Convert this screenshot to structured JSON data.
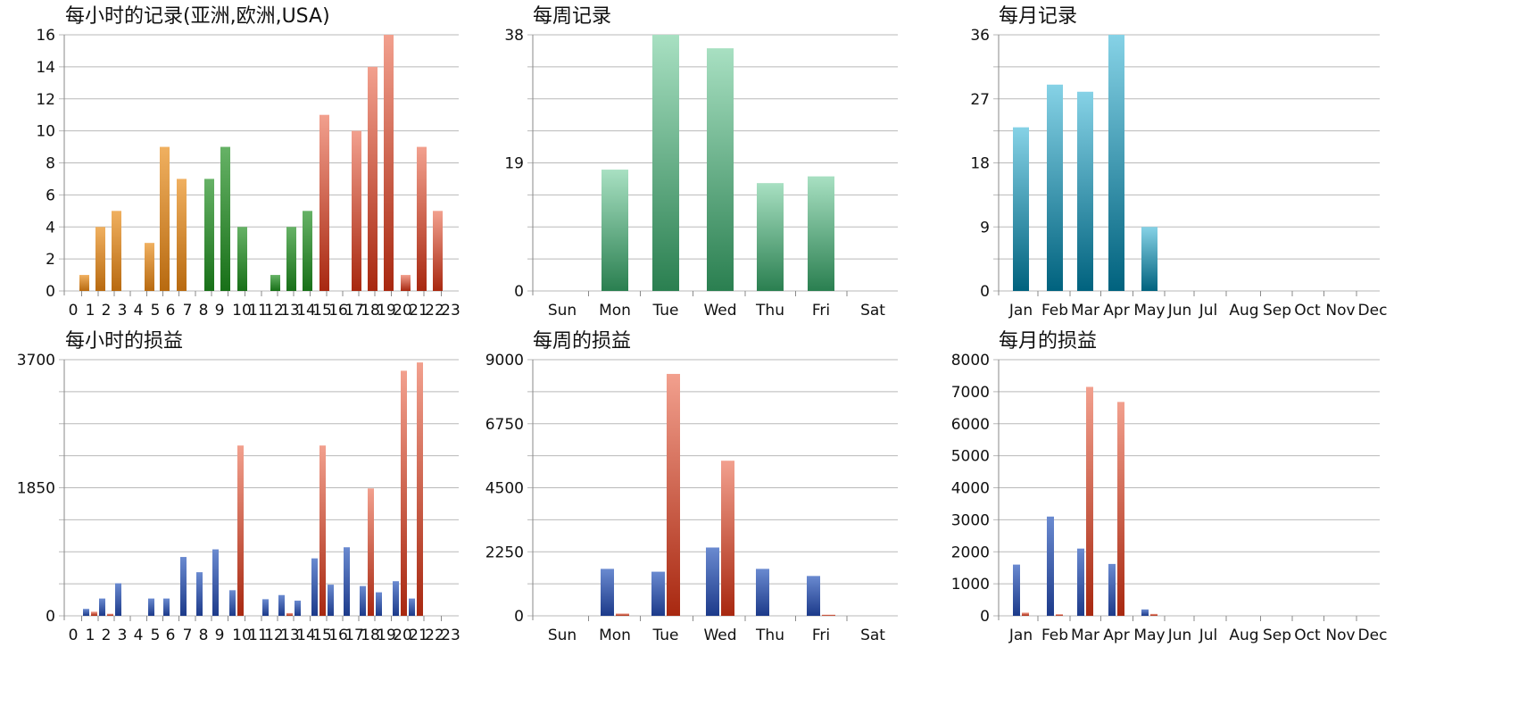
{
  "colors": {
    "grid": "#b9b9b9",
    "orange_top": "#f0b060",
    "orange_bottom": "#b86a10",
    "green_top": "#66b266",
    "green_bottom": "#187018",
    "red_top": "#f2a08e",
    "red_bottom": "#a82810",
    "teal_top": "#a8e0c2",
    "teal_bottom": "#2a7f50",
    "cyan_top": "#86d2e6",
    "cyan_bottom": "#00627e",
    "blue_top": "#6a8ad0",
    "blue_bottom": "#1c3a8a"
  },
  "chart_data": [
    {
      "id": "hourly-records",
      "type": "bar",
      "title": "每小时的记录(亚洲,欧洲,USA)",
      "categories": [
        "0",
        "1",
        "2",
        "3",
        "4",
        "5",
        "6",
        "7",
        "8",
        "9",
        "10",
        "11",
        "12",
        "13",
        "14",
        "15",
        "16",
        "17",
        "18",
        "19",
        "20",
        "21",
        "22",
        "23"
      ],
      "ylim": [
        0,
        16
      ],
      "yticks": [
        "0",
        "2",
        "4",
        "6",
        "8",
        "10",
        "12",
        "14",
        "16"
      ],
      "grid": true,
      "series": [
        {
          "color": "orange",
          "values": [
            0,
            1,
            4,
            5,
            0,
            3,
            9,
            7,
            0,
            0,
            0,
            0,
            0,
            0,
            0,
            0,
            0,
            0,
            0,
            0,
            0,
            0,
            0,
            0
          ]
        },
        {
          "color": "green",
          "values": [
            0,
            0,
            0,
            0,
            0,
            0,
            0,
            0,
            7,
            9,
            4,
            0,
            1,
            4,
            5,
            0,
            0,
            0,
            0,
            0,
            0,
            0,
            0,
            0
          ]
        },
        {
          "color": "red",
          "values": [
            0,
            0,
            0,
            0,
            0,
            0,
            0,
            0,
            0,
            0,
            0,
            0,
            0,
            0,
            0,
            11,
            0,
            10,
            14,
            16,
            1,
            9,
            5,
            0
          ]
        }
      ]
    },
    {
      "id": "weekly-records",
      "type": "bar",
      "title": "每周记录",
      "categories": [
        "Sun",
        "Mon",
        "Tue",
        "Wed",
        "Thu",
        "Fri",
        "Sat"
      ],
      "ylim": [
        0,
        38
      ],
      "yticks": [
        "0",
        "19",
        "38"
      ],
      "grid": true,
      "series": [
        {
          "color": "teal",
          "values": [
            0,
            18,
            38,
            36,
            16,
            17,
            0
          ]
        }
      ]
    },
    {
      "id": "monthly-records",
      "type": "bar",
      "title": "每月记录",
      "categories": [
        "Jan",
        "Feb",
        "Mar",
        "Apr",
        "May",
        "Jun",
        "Jul",
        "Aug",
        "Sep",
        "Oct",
        "Nov",
        "Dec"
      ],
      "ylim": [
        0,
        36
      ],
      "yticks": [
        "0",
        "9",
        "18",
        "27",
        "36"
      ],
      "grid": true,
      "series": [
        {
          "color": "cyan",
          "values": [
            23,
            29,
            28,
            36,
            9,
            0,
            0,
            0,
            0,
            0,
            0,
            0
          ]
        }
      ]
    },
    {
      "id": "hourly-pnl",
      "type": "bar",
      "title": "每小时的损益",
      "categories": [
        "0",
        "1",
        "2",
        "3",
        "4",
        "5",
        "6",
        "7",
        "8",
        "9",
        "10",
        "11",
        "12",
        "13",
        "14",
        "15",
        "16",
        "17",
        "18",
        "19",
        "20",
        "21",
        "22",
        "23"
      ],
      "ylim": [
        0,
        3700
      ],
      "yticks": [
        "0",
        "1850",
        "3700"
      ],
      "grid": true,
      "series": [
        {
          "color": "blue",
          "values": [
            0,
            100,
            250,
            470,
            0,
            250,
            250,
            850,
            630,
            960,
            370,
            0,
            240,
            300,
            220,
            830,
            450,
            990,
            430,
            340,
            500,
            250,
            0,
            0
          ]
        },
        {
          "color": "red",
          "values": [
            0,
            60,
            30,
            0,
            0,
            0,
            0,
            0,
            0,
            0,
            2460,
            0,
            0,
            40,
            0,
            2460,
            0,
            0,
            1840,
            0,
            3540,
            3660,
            0,
            0
          ]
        }
      ]
    },
    {
      "id": "weekly-pnl",
      "type": "bar",
      "title": "每周的损益",
      "categories": [
        "Sun",
        "Mon",
        "Tue",
        "Wed",
        "Thu",
        "Fri",
        "Sat"
      ],
      "ylim": [
        0,
        9000
      ],
      "yticks": [
        "0",
        "2250",
        "4500",
        "6750",
        "9000"
      ],
      "grid": true,
      "series": [
        {
          "color": "blue",
          "values": [
            0,
            1650,
            1550,
            2400,
            1650,
            1400,
            0
          ]
        },
        {
          "color": "red",
          "values": [
            0,
            80,
            8500,
            5450,
            0,
            40,
            0
          ]
        }
      ]
    },
    {
      "id": "monthly-pnl",
      "type": "bar",
      "title": "每月的损益",
      "categories": [
        "Jan",
        "Feb",
        "Mar",
        "Apr",
        "May",
        "Jun",
        "Jul",
        "Aug",
        "Sep",
        "Oct",
        "Nov",
        "Dec"
      ],
      "ylim": [
        0,
        8000
      ],
      "yticks": [
        "0",
        "1000",
        "2000",
        "3000",
        "4000",
        "5000",
        "6000",
        "7000",
        "8000"
      ],
      "grid": true,
      "series": [
        {
          "color": "blue",
          "values": [
            1600,
            3100,
            2100,
            1620,
            200,
            0,
            0,
            0,
            0,
            0,
            0,
            0
          ]
        },
        {
          "color": "red",
          "values": [
            100,
            50,
            7150,
            6680,
            60,
            0,
            0,
            0,
            0,
            0,
            0,
            0
          ]
        }
      ]
    }
  ]
}
